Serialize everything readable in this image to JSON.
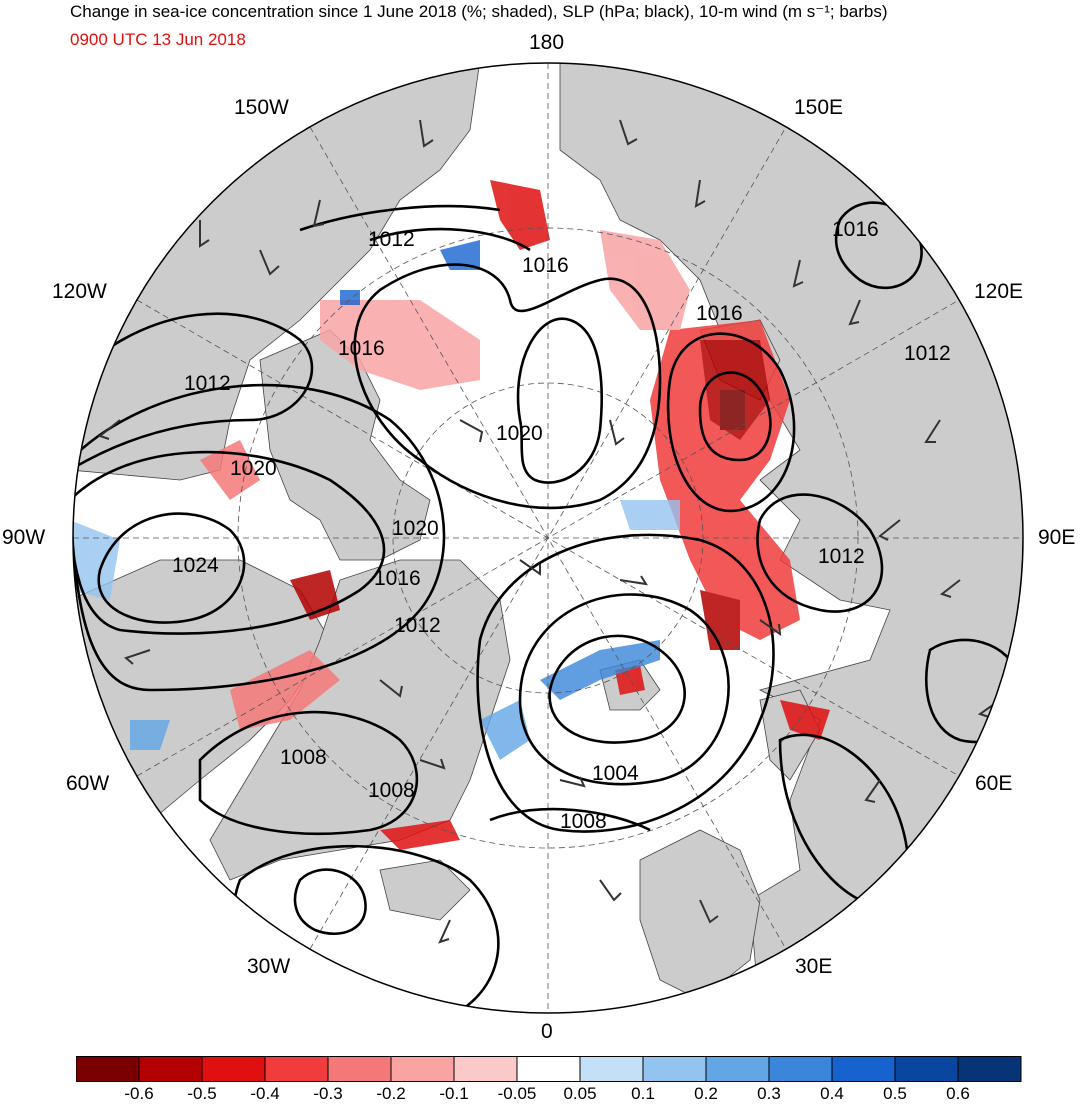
{
  "title": "Change in sea-ice concentration since 1 June 2018 (%; shaded), SLP (hPa; black), 10-m wind (m s⁻¹; barbs)",
  "valid_time": "0900 UTC 13 Jun 2018",
  "longitude_labels": {
    "lon_180": "180",
    "lon_150e": "150E",
    "lon_120e": "120E",
    "lon_90e": "90E",
    "lon_60e": "60E",
    "lon_30e": "30E",
    "lon_0": "0",
    "lon_30w": "30W",
    "lon_60w": "60W",
    "lon_90w": "90W",
    "lon_120w": "120W",
    "lon_150w": "150W"
  },
  "slp_contour_labels": [
    "1012",
    "1016",
    "1016",
    "1016",
    "1012",
    "1016",
    "1012",
    "1020",
    "1020",
    "1024",
    "1020",
    "1016",
    "1012",
    "1012",
    "1008",
    "1008",
    "1004",
    "1008"
  ],
  "colorbar": {
    "ticks": [
      "-0.6",
      "-0.5",
      "-0.4",
      "-0.3",
      "-0.2",
      "-0.1",
      "-0.05",
      "0.05",
      "0.1",
      "0.2",
      "0.3",
      "0.4",
      "0.5",
      "0.6"
    ],
    "colors": [
      "#7a0000",
      "#b30000",
      "#e01010",
      "#f03c3c",
      "#f57878",
      "#f9a3a3",
      "#fcc9c9",
      "#ffffff",
      "#c3e0f8",
      "#93c4f0",
      "#62a6e6",
      "#3a86da",
      "#1663cf",
      "#0a45a0",
      "#063476"
    ]
  },
  "colors": {
    "land": "#cccccc",
    "ocean_ice": "#ffffff",
    "contour": "#000000",
    "ice_loss": "#e01010",
    "ice_gain": "#1663cf"
  }
}
